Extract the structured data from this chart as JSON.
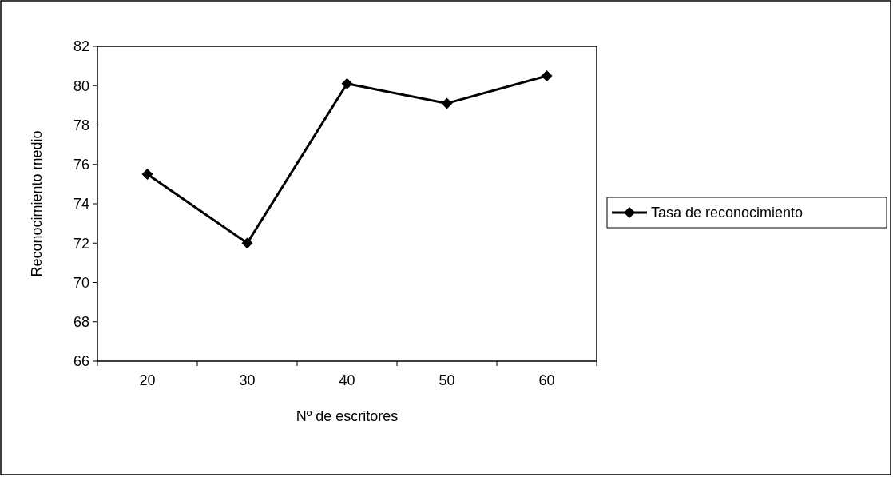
{
  "chart_data": {
    "type": "line",
    "xlabel": "Nº de escritores",
    "ylabel": "Reconocimiento medio",
    "categories": [
      "20",
      "30",
      "40",
      "50",
      "60"
    ],
    "series": [
      {
        "name": "Tasa de reconocimiento",
        "color": "#000000",
        "values": [
          75.5,
          72.0,
          80.1,
          79.1,
          80.5
        ]
      }
    ],
    "ylim": [
      66,
      82
    ],
    "yticks": [
      66,
      68,
      70,
      72,
      74,
      76,
      78,
      80,
      82
    ],
    "grid": false,
    "legend": "right",
    "marker": "diamond",
    "line_style": "solid"
  }
}
